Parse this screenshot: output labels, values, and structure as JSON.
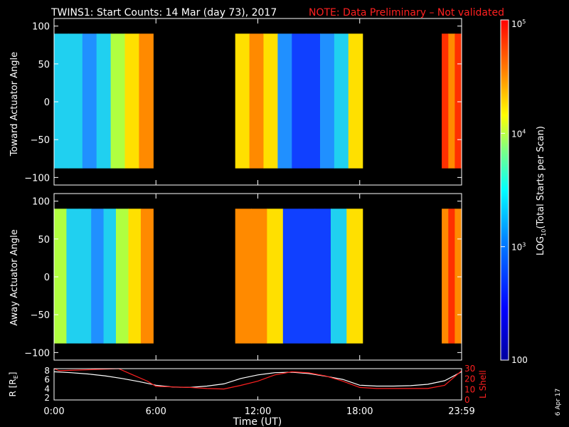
{
  "header": {
    "title": "TWINS1: Start Counts: 14 Mar (day  73), 2017",
    "note": "NOTE: Data Preliminary – Not validated"
  },
  "colors": {
    "background": "#000000",
    "axes": "#ffffff",
    "note": "#ff2020",
    "r_line": "#ffffff",
    "l_shell_line": "#ff2020"
  },
  "footer": {
    "date_stamp": "6 Apr 17"
  },
  "chart_data": [
    {
      "type": "heatmap",
      "panel": "toward",
      "ylabel": "Toward Actuator Angle",
      "ylim": [
        -110,
        110
      ],
      "yticks": [
        "100",
        "50",
        "0",
        "−50",
        "−100"
      ],
      "angle_range": [
        -88,
        90
      ],
      "blocks": [
        {
          "start": "0:00",
          "end": "5:50",
          "intensity_profile": [
            "cyan",
            "cyan",
            "light-blue",
            "cyan",
            "yellow-green",
            "yellow",
            "orange"
          ]
        },
        {
          "start": "10:40",
          "end": "18:10",
          "intensity_profile": [
            "yellow",
            "orange",
            "yellow",
            "light-blue",
            "blue",
            "blue",
            "light-blue",
            "cyan",
            "yellow"
          ]
        },
        {
          "start": "22:50",
          "end": "23:59",
          "intensity_profile": [
            "red",
            "orange",
            "red"
          ]
        }
      ]
    },
    {
      "type": "heatmap",
      "panel": "away",
      "ylabel": "Away Actuator Angle",
      "ylim": [
        -110,
        110
      ],
      "yticks": [
        "100",
        "50",
        "0",
        "−50",
        "−100"
      ],
      "angle_range": [
        -88,
        90
      ],
      "blocks": [
        {
          "start": "0:00",
          "end": "5:50",
          "intensity_profile": [
            "yellow-green",
            "cyan",
            "cyan",
            "light-blue",
            "cyan",
            "yellow-green",
            "yellow",
            "orange"
          ]
        },
        {
          "start": "10:40",
          "end": "18:10",
          "intensity_profile": [
            "orange",
            "orange",
            "yellow",
            "blue",
            "blue",
            "blue",
            "cyan",
            "yellow"
          ]
        },
        {
          "start": "22:50",
          "end": "23:59",
          "intensity_profile": [
            "orange",
            "red",
            "orange"
          ]
        }
      ]
    },
    {
      "type": "line",
      "panel": "orbit",
      "xlabel": "Time (UT)",
      "xticks": [
        "0:00",
        "6:00",
        "12:00",
        "18:00",
        "23:59"
      ],
      "ylabel_left": "R [R",
      "ylabel_left_sub": "E",
      "ylabel_left_end": "]",
      "ylabel_right": "L Shell",
      "yticks_left": [
        "8",
        "6",
        "4",
        "2"
      ],
      "yticks_right": [
        "30",
        "20",
        "10",
        "0"
      ],
      "ylim_left": [
        1.5,
        8.5
      ],
      "ylim_right": [
        0,
        30
      ],
      "series": [
        {
          "name": "R",
          "axis": "left",
          "x": [
            0,
            1,
            2,
            3,
            4,
            5,
            5.5,
            6,
            7,
            8,
            9,
            10,
            11,
            12,
            13,
            14,
            15,
            16,
            17,
            18,
            19,
            20,
            21,
            22,
            23,
            24
          ],
          "y": [
            7.8,
            7.6,
            7.3,
            6.9,
            6.3,
            5.6,
            5.2,
            4.8,
            4.4,
            4.3,
            4.6,
            5.1,
            6.3,
            7.1,
            7.6,
            7.7,
            7.4,
            6.8,
            6.1,
            4.8,
            4.6,
            4.6,
            4.7,
            5.0,
            5.8,
            7.8
          ]
        },
        {
          "name": "L Shell",
          "axis": "right",
          "x": [
            0,
            0.3,
            3.8,
            4.5,
            5.5,
            6,
            7,
            8,
            9,
            10,
            11,
            12,
            13,
            14,
            15,
            16,
            17,
            18,
            19,
            20,
            21,
            22,
            23,
            24
          ],
          "y": [
            30,
            28,
            30,
            25,
            18,
            13,
            12.5,
            12,
            11,
            10.5,
            14,
            18,
            24,
            27,
            26,
            23,
            18,
            12,
            11,
            11,
            11,
            11,
            14,
            28
          ]
        }
      ]
    }
  ],
  "colorbar": {
    "label_prefix": "LOG",
    "label_sub": "10",
    "label_rest": "(Total Starts per Scan)",
    "ticks": [
      {
        "label": "100",
        "value": 100
      },
      {
        "label": "10",
        "sup": "3",
        "value": 1000
      },
      {
        "label": "10",
        "sup": "4",
        "value": 10000
      },
      {
        "label": "10",
        "sup": "5",
        "value": 100000
      }
    ],
    "range": [
      100,
      100000
    ]
  }
}
